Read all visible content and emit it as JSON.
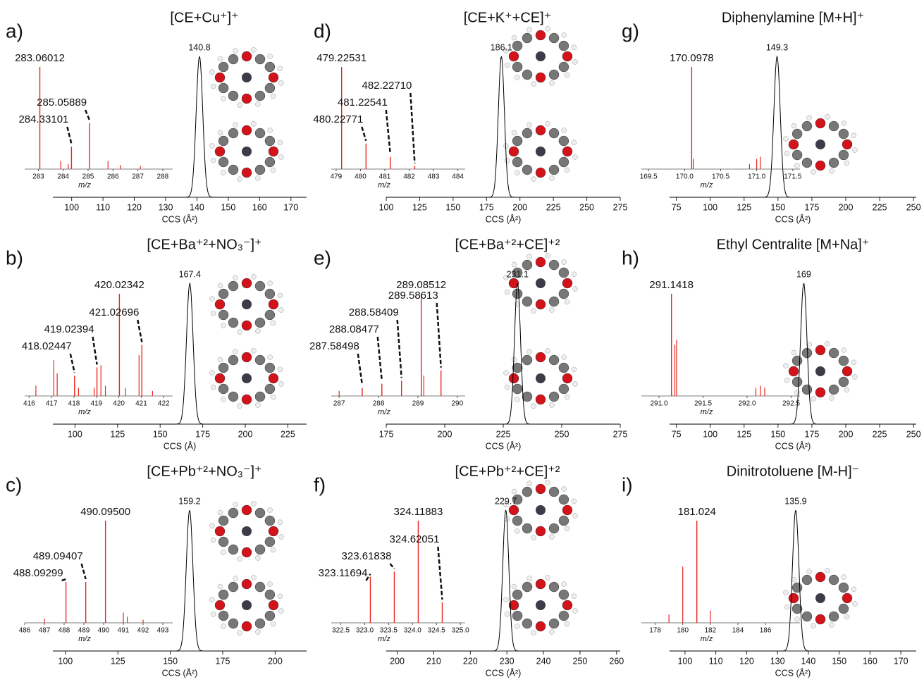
{
  "chart_data": [
    {
      "type": "ion-mobility",
      "label": "a)",
      "title": "[CE+Cu⁺]⁺",
      "ccs": {
        "xlabel": "CCS (Å²)",
        "xlim": [
          94,
          175
        ],
        "xticks": [
          100,
          110,
          120,
          130,
          140,
          150,
          160,
          170
        ],
        "peak": 140.8,
        "color": "#000000"
      },
      "ms": {
        "xlabel": "m/z",
        "xlim": [
          282.45,
          288.4
        ],
        "xticks": [
          283,
          284,
          285,
          286,
          287,
          288
        ],
        "color": "#e8251f",
        "labeled_peaks": {
          "mz": [
            283.06012,
            284.33101,
            285.05889
          ],
          "intensity": [
            100,
            22,
            45
          ],
          "mz_labels": [
            "283.06012",
            "284.33101",
            "285.05889"
          ]
        },
        "minor_peaks": {
          "mz": [
            283.9,
            284.2,
            285.8,
            286.3,
            287.1
          ],
          "intensity": [
            8,
            5,
            8,
            4,
            3
          ]
        }
      }
    },
    {
      "type": "ion-mobility",
      "label": "b)",
      "title": "[CE+Ba⁺²+NO₃⁻]⁺",
      "ccs": {
        "xlabel": "CCS (Å)",
        "xlim": [
          87,
          236
        ],
        "xticks": [
          100,
          125,
          150,
          175,
          200,
          225
        ],
        "peak": 167.4,
        "color": "#000000"
      },
      "ms": {
        "xlabel": "m/z",
        "xlim": [
          415.8,
          422.4
        ],
        "xticks": [
          416,
          417,
          418,
          419,
          420,
          421,
          422
        ],
        "color": "#e8251f",
        "labeled_peaks": {
          "mz": [
            418.02447,
            419.02394,
            420.02342,
            421.02696
          ],
          "intensity": [
            20,
            28,
            100,
            50
          ],
          "mz_labels": [
            "418.02447",
            "419.02394",
            "420.02342",
            "421.02696"
          ]
        },
        "minor_peaks": {
          "mz": [
            416.3,
            417.1,
            417.25,
            418.2,
            418.9,
            419.2,
            419.4,
            420.3,
            420.9,
            421.5
          ],
          "intensity": [
            10,
            35,
            22,
            8,
            8,
            30,
            10,
            8,
            40,
            5
          ]
        }
      }
    },
    {
      "type": "ion-mobility",
      "label": "c)",
      "title": "[CE+Pb⁺²+NO₃⁻]⁺",
      "ccs": {
        "xlabel": "CCS (Å²)",
        "xlim": [
          94,
          215
        ],
        "xticks": [
          100,
          125,
          150,
          175,
          200
        ],
        "peak": 159.2,
        "color": "#000000"
      },
      "ms": {
        "xlabel": "m/z",
        "xlim": [
          486,
          493.5
        ],
        "xticks": [
          486,
          487,
          488,
          489,
          490,
          491,
          492,
          493
        ],
        "color": "#e8251f",
        "labeled_peaks": {
          "mz": [
            488.09299,
            489.09407,
            490.095
          ],
          "intensity": [
            40,
            40,
            100
          ],
          "mz_labels": [
            "488.09299",
            "489.09407",
            "490.09500"
          ]
        },
        "minor_peaks": {
          "mz": [
            487.0,
            491.0,
            491.2,
            492.0
          ],
          "intensity": [
            4,
            10,
            6,
            3
          ]
        }
      }
    },
    {
      "type": "ion-mobility",
      "label": "d)",
      "title": "[CE+K⁺+CE]⁺",
      "ccs": {
        "xlabel": "CCS (Å²)",
        "xlim": [
          100,
          275
        ],
        "xticks": [
          100,
          125,
          150,
          175,
          200,
          225,
          250,
          275
        ],
        "peak": 186.1,
        "color": "#000000"
      },
      "ms": {
        "xlabel": "m/z",
        "xlim": [
          478.8,
          484.3
        ],
        "xticks": [
          479,
          480,
          481,
          482,
          483,
          484
        ],
        "color": "#e8251f",
        "labeled_peaks": {
          "mz": [
            479.22531,
            480.22771,
            481.22541,
            482.2271
          ],
          "intensity": [
            100,
            25,
            12,
            3
          ],
          "mz_labels": [
            "479.22531",
            "480.22771",
            "481.22541",
            "482.22710"
          ]
        },
        "minor_peaks": {
          "mz": [],
          "intensity": []
        }
      }
    },
    {
      "type": "ion-mobility",
      "label": "e)",
      "title": "[CE+Ba⁺²+CE]⁺²",
      "ccs": {
        "xlabel": "CCS (Å²)",
        "xlim": [
          175,
          275
        ],
        "xticks": [
          175,
          200,
          225,
          250,
          275
        ],
        "peak": 231.1,
        "color": "#000000"
      },
      "ms": {
        "xlabel": "m/z",
        "xlim": [
          286.8,
          290.2
        ],
        "xticks": [
          287,
          288,
          289,
          290
        ],
        "color": "#e8251f",
        "labeled_peaks": {
          "mz": [
            287.58498,
            288.08477,
            288.58409,
            289.08512,
            289.58613
          ],
          "intensity": [
            8,
            12,
            15,
            100,
            25
          ],
          "mz_labels": [
            "287.58498",
            "288.08477",
            "288.58409",
            "289.08512",
            "289.58613"
          ]
        },
        "minor_peaks": {
          "mz": [
            287.0,
            289.15
          ],
          "intensity": [
            5,
            20
          ]
        }
      }
    },
    {
      "type": "ion-mobility",
      "label": "f)",
      "title": "[CE+Pb⁺²+CE]⁺²",
      "ccs": {
        "xlabel": "CCS (Å²)",
        "xlim": [
          197,
          261
        ],
        "xticks": [
          200,
          210,
          220,
          230,
          240,
          250,
          260
        ],
        "peak": 229.7,
        "color": "#000000"
      },
      "ms": {
        "xlabel": "m/z",
        "xlim": [
          322.3,
          325.1
        ],
        "xticks": [
          322.5,
          {
            "value": 323,
            "label": "323.0"
          },
          323.5,
          {
            "value": 324,
            "label": "324.0"
          },
          324.5,
          {
            "value": 325,
            "label": "325.0"
          }
        ],
        "color": "#e8251f",
        "labeled_peaks": {
          "mz": [
            323.11694,
            323.61838,
            324.11883,
            324.62051
          ],
          "intensity": [
            45,
            50,
            100,
            20
          ],
          "mz_labels": [
            "323.11694",
            "323.61838",
            "324.11883",
            "324.62051"
          ]
        },
        "minor_peaks": {
          "mz": [],
          "intensity": []
        }
      }
    },
    {
      "type": "ion-mobility",
      "label": "g)",
      "title": "Diphenylamine [M+H]⁺",
      "ccs": {
        "xlabel": "CCS (Å²)",
        "xlim": [
          70,
          252
        ],
        "xticks": [
          75,
          100,
          125,
          150,
          175,
          200,
          225,
          250
        ],
        "peak": 149.3,
        "color": "#000000"
      },
      "ms": {
        "xlabel": "m/z",
        "xlim": [
          169.4,
          171.6
        ],
        "xticks": [
          169.5,
          {
            "value": 170,
            "label": "170.0"
          },
          170.5,
          {
            "value": 171,
            "label": "171.0"
          },
          171.5
        ],
        "color": "#e8251f",
        "labeled_peaks": {
          "mz": [
            170.0978
          ],
          "intensity": [
            100
          ],
          "mz_labels": [
            "170.0978"
          ]
        },
        "minor_peaks": {
          "mz": [
            170.12,
            170.9,
            171.0,
            171.05
          ],
          "intensity": [
            10,
            5,
            10,
            12
          ]
        }
      }
    },
    {
      "type": "ion-mobility",
      "label": "h)",
      "title": "Ethyl Centralite [M+Na]⁺",
      "ccs": {
        "xlabel": "CCS (Å²)",
        "xlim": [
          70,
          252
        ],
        "xticks": [
          75,
          100,
          125,
          150,
          175,
          200,
          225,
          250
        ],
        "peak": 169.0,
        "color": "#000000"
      },
      "ms": {
        "xlabel": "m/z",
        "xlim": [
          290.8,
          292.6
        ],
        "xticks": [
          {
            "value": 291,
            "label": "291.0"
          },
          291.5,
          {
            "value": 292,
            "label": "292.0"
          },
          292.5
        ],
        "color": "#e8251f",
        "labeled_peaks": {
          "mz": [
            291.1418
          ],
          "intensity": [
            100
          ],
          "mz_labels": [
            "291.1418"
          ]
        },
        "minor_peaks": {
          "mz": [
            291.18,
            291.2,
            292.1,
            292.15,
            292.2
          ],
          "intensity": [
            50,
            55,
            8,
            10,
            8
          ]
        }
      }
    },
    {
      "type": "ion-mobility",
      "label": "i)",
      "title": "Dinitrotoluene [M-H]⁻",
      "ccs": {
        "xlabel": "CCS (Å²)",
        "xlim": [
          95,
          175
        ],
        "xticks": [
          100,
          110,
          120,
          130,
          140,
          150,
          160,
          170
        ],
        "peak": 135.9,
        "color": "#000000"
      },
      "ms": {
        "xlabel": "m/z",
        "xlim": [
          177,
          188.5
        ],
        "xticks": [
          178,
          180,
          182,
          184,
          186
        ],
        "color": "#e8251f",
        "labeled_peaks": {
          "mz": [
            181.024
          ],
          "intensity": [
            100
          ],
          "mz_labels": [
            "181.024"
          ]
        },
        "minor_peaks": {
          "mz": [
            179,
            180,
            182
          ],
          "intensity": [
            8,
            55,
            12
          ]
        }
      }
    }
  ]
}
